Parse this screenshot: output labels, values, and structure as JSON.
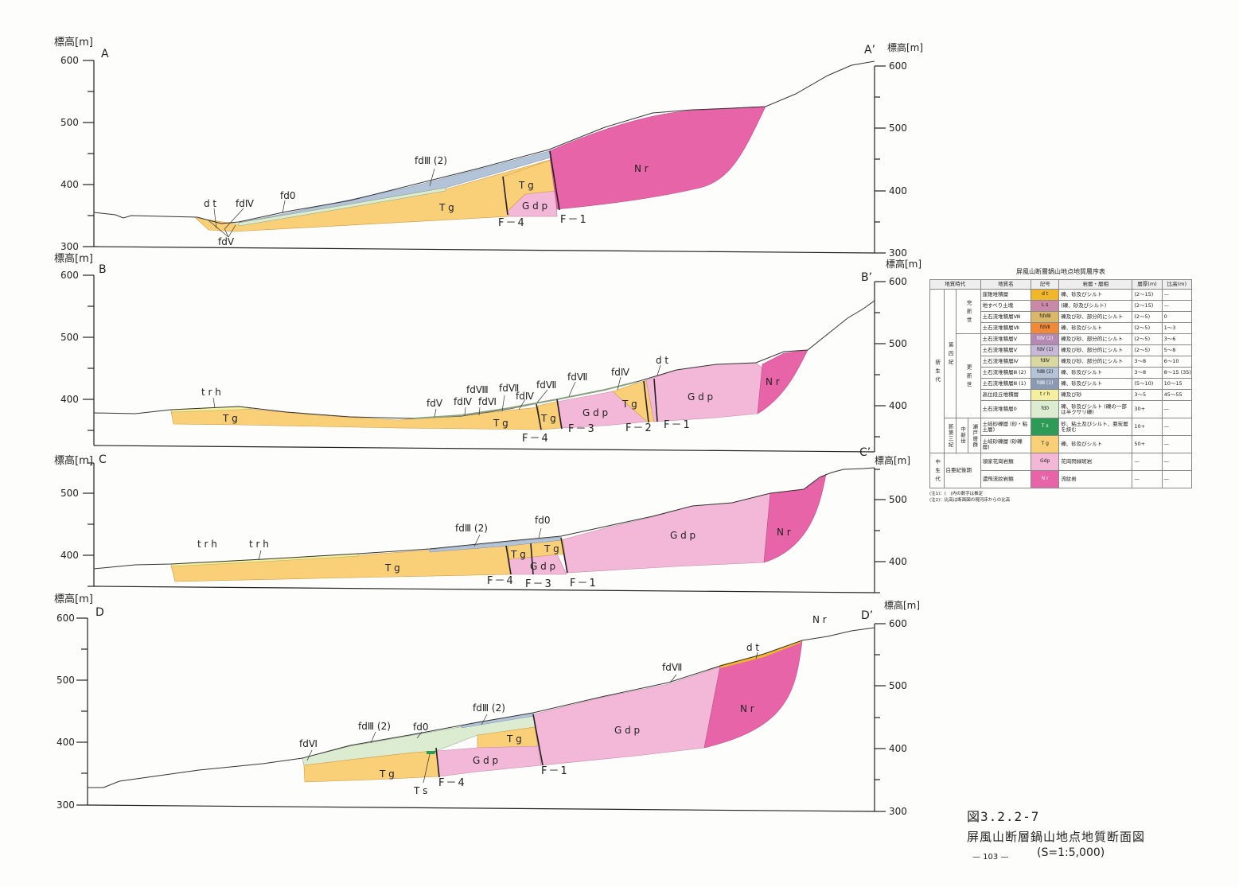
{
  "axis_title": "標高[m]",
  "unit_label": "標高[m]",
  "sections": [
    {
      "left": "A",
      "right": "A’",
      "ticks_left": [
        "600",
        "500",
        "400",
        "300"
      ],
      "ticks_right": [
        "600",
        "500",
        "400",
        "300"
      ],
      "labels": {
        "dt": "d t",
        "fd4": "fdⅣ",
        "fd0": "fd0",
        "fd5": "fdⅤ",
        "fd32": "fdⅢ (2)",
        "tg1": "T g",
        "tg2": "T g",
        "gdp": "G d p",
        "nr": "N r",
        "f4": "F－4",
        "f1": "F－1"
      }
    },
    {
      "left": "B",
      "right": "B’",
      "ticks_left": [
        "600",
        "500",
        "400"
      ],
      "ticks_right": [
        "600",
        "500",
        "400"
      ],
      "labels": {
        "trh": "t r h",
        "tg1": "T g",
        "fd5": "fdⅤ",
        "fd4a": "fdⅣ",
        "fd6": "fdⅥ",
        "fd5b": "fdⅧ",
        "fd7": "fdⅦ",
        "fd4b": "fdⅣ",
        "fd7b": "fdⅦ",
        "fd7c": "fdⅦ",
        "fd4c": "fdⅣ",
        "dt": "d t",
        "tg2": "T g",
        "tg3": "T g",
        "tg4": "T g",
        "gdp1": "G d p",
        "gdp2": "G d p",
        "nr": "N r",
        "f4": "F－4",
        "f3": "F－3",
        "f2": "F－2",
        "f1": "F－1"
      }
    },
    {
      "left": "C",
      "right": "C’",
      "ticks_left": [
        "500",
        "400"
      ],
      "ticks_right": [
        "500",
        "400"
      ],
      "labels": {
        "trh1": "t r h",
        "trh2": "t r h",
        "fd32": "fdⅢ (2)",
        "fd0": "fd0",
        "tg1": "T g",
        "tg2": "T g",
        "tg3": "T g",
        "gdp1": "G d p",
        "gdp2": "G d p",
        "nr": "N r",
        "f4": "F－4",
        "f3": "F－3",
        "f1": "F－1"
      }
    },
    {
      "left": "D",
      "right": "D’",
      "ticks_left": [
        "600",
        "500",
        "400",
        "300"
      ],
      "ticks_right": [
        "600",
        "500",
        "400",
        "300"
      ],
      "labels": {
        "nr1": "N r",
        "dt": "d t",
        "fd7": "fdⅦ",
        "fd6": "fdⅥ",
        "fd32a": "fdⅢ (2)",
        "fd0": "fd0",
        "fd32b": "fdⅢ (2)",
        "tg1": "T g",
        "tg2": "T g",
        "ts": "T s",
        "gdp1": "G d p",
        "gdp2": "G d p",
        "nr2": "N r",
        "f4": "F－4",
        "f1": "F－1"
      }
    }
  ],
  "legend": {
    "title": "屏風山断層鍋山地点地質層序表",
    "headers": [
      "地質時代",
      "地質名",
      "記号",
      "岩層・層相",
      "層厚(m)",
      "比高(m)"
    ],
    "eras": {
      "cenozoic": "新 生 代",
      "mesozoic": "中 生 代"
    },
    "periods": {
      "quaternary": "第 四 紀",
      "neogene": "新第三紀"
    },
    "epochs": {
      "holocene": "完 新 世",
      "pleistocene": "更 新 世",
      "miocene": "中新世",
      "cretaceous": "白亜紀後期"
    },
    "groups": {
      "seto": "瀬戸層群"
    },
    "rows": [
      {
        "name": "崖錐堆積層",
        "symbol": "d t",
        "lith": "礫、砂及びシルト",
        "thick": "(2～15)",
        "rel": "—",
        "color": "#f2b62a"
      },
      {
        "name": "地すべり土塊",
        "symbol": "L s",
        "lith": "(礫、砂及びシルト)",
        "thick": "(2～15)",
        "rel": "—",
        "color": "#c88aa8"
      },
      {
        "name": "土石流堆積層Ⅷ",
        "symbol": "fdⅧ",
        "lith": "礫及び砂、部分的にシルト",
        "thick": "(2～5)",
        "rel": "0",
        "color": "#d9b86a"
      },
      {
        "name": "土石流堆積層Ⅶ",
        "symbol": "fdⅦ",
        "lith": "礫、砂及びシルト",
        "thick": "(2～5)",
        "rel": "1～3",
        "color": "#f08a3a"
      },
      {
        "name": "土石流堆積層Ⅴ",
        "symbol": "fdⅤ (2)",
        "lith": "礫及び砂、部分的にシルト",
        "thick": "(2～5)",
        "rel": "3～6",
        "color": "#b48ab4"
      },
      {
        "name": "土石流堆積層Ⅴ",
        "symbol": "fdⅤ (1)",
        "lith": "礫及び砂、部分的にシルト",
        "thick": "(2～5)",
        "rel": "5～8",
        "color": "#c8b8d8"
      },
      {
        "name": "土石流堆積層Ⅳ",
        "symbol": "fdⅣ",
        "lith": "礫及び砂、部分的にシルト",
        "thick": "3～8",
        "rel": "6～10",
        "color": "#d8d8a0"
      },
      {
        "name": "土石流堆積層Ⅲ (2)",
        "symbol": "fdⅢ (2)",
        "lith": "礫、砂及びシルト",
        "thick": "3～8",
        "rel": "8～15 (35)",
        "color": "#b4c4d8"
      },
      {
        "name": "土石流堆積層Ⅲ (1)",
        "symbol": "fdⅢ (1)",
        "lith": "礫、砂及びシルト",
        "thick": "(5～10)",
        "rel": "10～15",
        "color": "#8a9ab4"
      },
      {
        "name": "高位段丘堆積層",
        "symbol": "t r h",
        "lith": "礫及び砂",
        "thick": "3～5",
        "rel": "45～55",
        "color": "#f4f0a0"
      },
      {
        "name": "土石流堆積層0",
        "symbol": "fd0",
        "lith": "礫、砂及びシルト (礫の一部は半クサリ礫)",
        "thick": "30+",
        "rel": "—",
        "color": "#dcecd0"
      },
      {
        "name": "土岐砂礫層 (砂・粘土層)",
        "symbol": "T s",
        "lith": "砂、粘土及びシルト、亜炭層を挟む",
        "thick": "10+",
        "rel": "—",
        "color": "#2e9a58"
      },
      {
        "name": "土岐砂礫層 (砂礫層)",
        "symbol": "T g",
        "lith": "礫、砂及びシルト",
        "thick": "50+",
        "rel": "—",
        "color": "#f9cf78"
      },
      {
        "name": "領家花崗岩類",
        "symbol": "Gdp",
        "lith": "花崗閃緑斑岩",
        "thick": "—",
        "rel": "—",
        "color": "#f3b8d8"
      },
      {
        "name": "濃飛流紋岩類",
        "symbol": "N r",
        "lith": "流紋岩",
        "thick": "—",
        "rel": "—",
        "color": "#e864a8"
      }
    ],
    "notes": [
      "(注1)：(　)内の数字は推定",
      "(注2)：比高は断面図の現河床からの比高"
    ]
  },
  "caption": {
    "fig_no": "図3.2.2-7",
    "title": "屏風山断層鍋山地点地質断面図",
    "scale": "(S=1:5,000)"
  },
  "page_number": "— 103 —",
  "colors": {
    "Tg": "#f9cf78",
    "Gdp": "#f3b8d8",
    "Nr": "#e864a8",
    "fd0": "#dcecd0",
    "fd3": "#b4c4d8",
    "trh": "#f4f0a0",
    "Ts": "#2e9a58",
    "dt": "#f2b62a"
  }
}
